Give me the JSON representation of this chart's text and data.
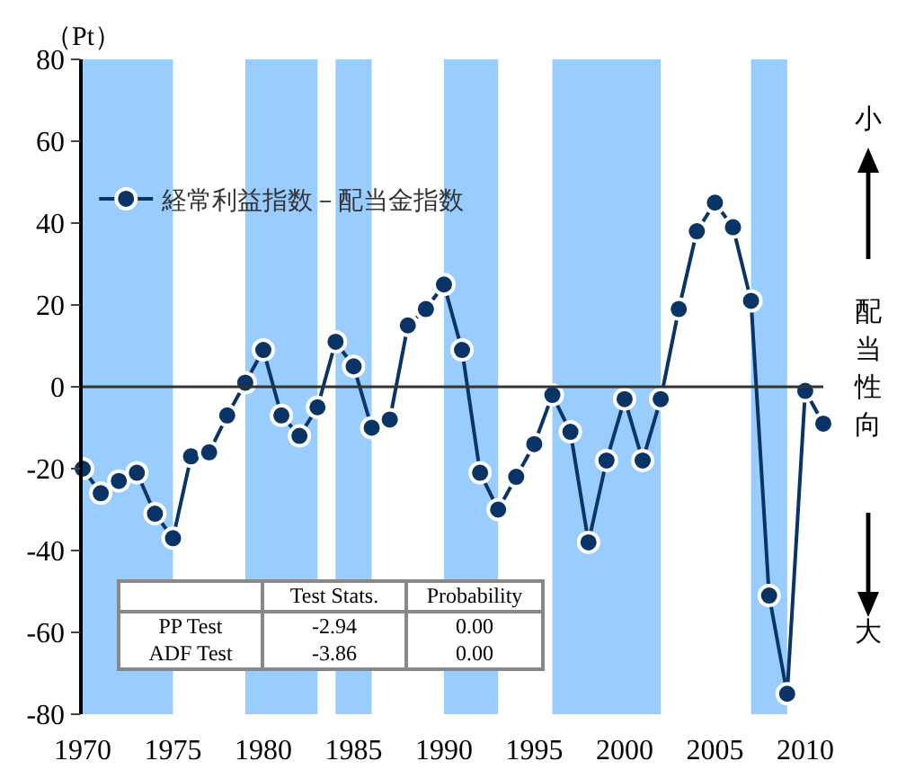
{
  "chart_data": {
    "type": "line",
    "ylabel": "（Pt）",
    "x": [
      1970,
      1971,
      1972,
      1973,
      1974,
      1975,
      1976,
      1977,
      1978,
      1979,
      1980,
      1981,
      1982,
      1983,
      1984,
      1985,
      1986,
      1987,
      1988,
      1989,
      1990,
      1991,
      1992,
      1993,
      1994,
      1995,
      1996,
      1997,
      1998,
      1999,
      2000,
      2001,
      2002,
      2003,
      2004,
      2005,
      2006,
      2007,
      2008,
      2009,
      2010,
      2011
    ],
    "series": [
      {
        "name": "経常利益指数－配当金指数",
        "color": "#0b3466",
        "values": [
          -20,
          -26,
          -23,
          -21,
          -31,
          -37,
          -17,
          -16,
          -7,
          1,
          9,
          -7,
          -12,
          -5,
          11,
          5,
          -10,
          -8,
          15,
          19,
          25,
          9,
          -21,
          -30,
          -22,
          -14,
          -2,
          -11,
          -38,
          -18,
          -3,
          -18,
          -3,
          19,
          38,
          45,
          39,
          21,
          -51,
          -75,
          -1,
          -9
        ]
      }
    ],
    "xlim": [
      1970,
      2011
    ],
    "xticks": [
      1970,
      1975,
      1980,
      1985,
      1990,
      1995,
      2000,
      2005,
      2010
    ],
    "ylim": [
      -80,
      80
    ],
    "yticks": [
      -80,
      -60,
      -40,
      -20,
      0,
      20,
      40,
      60,
      80
    ],
    "bands": [
      {
        "axis": "x",
        "from": 1970,
        "to": 1975,
        "color": "#99ccff"
      },
      {
        "axis": "x",
        "from": 1979,
        "to": 1983,
        "color": "#99ccff"
      },
      {
        "axis": "x",
        "from": 1984,
        "to": 1986,
        "color": "#99ccff"
      },
      {
        "axis": "x",
        "from": 1990,
        "to": 1993,
        "color": "#99ccff"
      },
      {
        "axis": "x",
        "from": 1996,
        "to": 2002,
        "color": "#99ccff"
      },
      {
        "axis": "x",
        "from": 2007,
        "to": 2009,
        "color": "#99ccff"
      }
    ],
    "annotations": [
      "小",
      "配当性向",
      "大",
      "Test Stats.",
      "Probability",
      "PP Test",
      "-2.94",
      "0.00",
      "ADF Test",
      "-3.86",
      "0.00"
    ],
    "ref_lines": [
      {
        "axis": "y",
        "value": 0,
        "color": "#333333"
      }
    ],
    "grid": false,
    "legend": "top left",
    "marker": "circle",
    "line_style": "solid"
  }
}
